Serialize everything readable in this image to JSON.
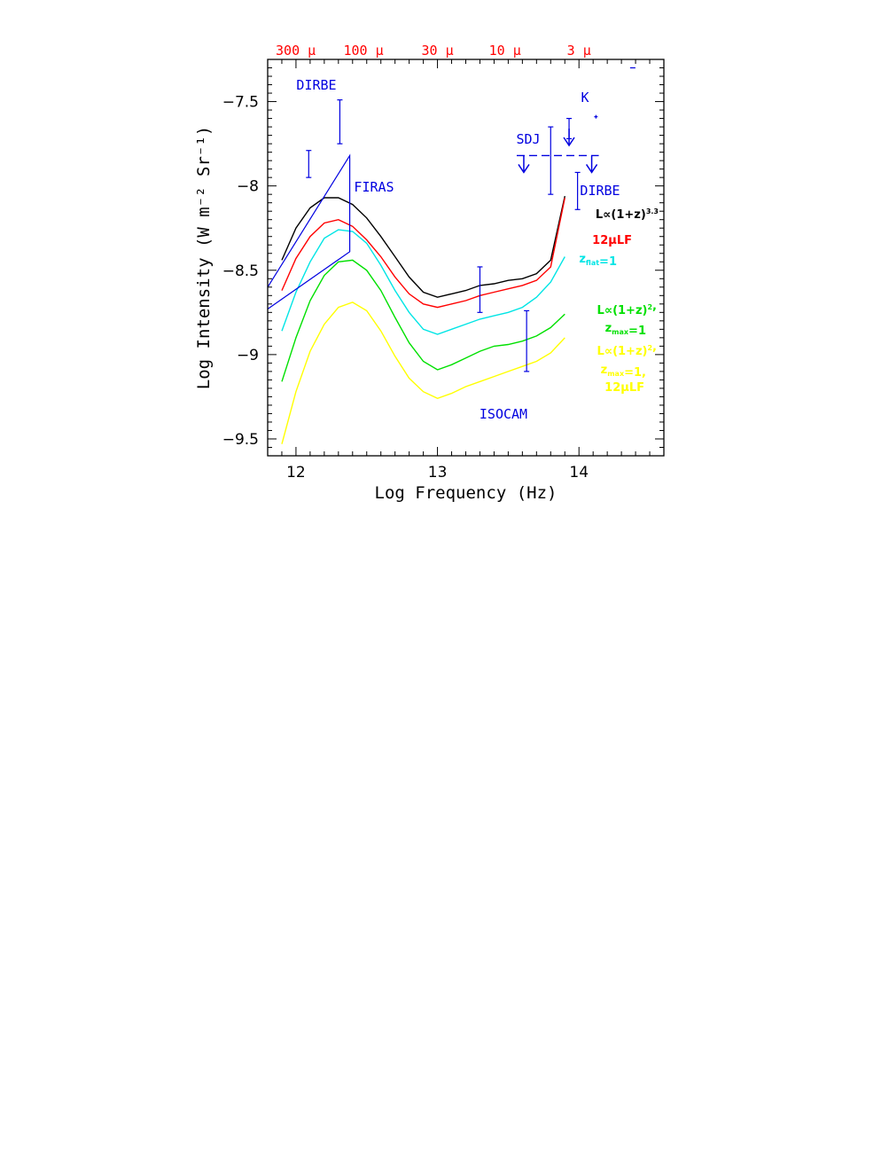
{
  "chart_data": {
    "type": "line",
    "xlabel": "Log Frequency (Hz)",
    "ylabel": "Log Intensity (W m⁻² Sr⁻¹)",
    "xlim": [
      11.8,
      14.6
    ],
    "ylim": [
      -9.6,
      -7.25
    ],
    "x_ticks": [
      {
        "value": 12,
        "label": "12"
      },
      {
        "value": 13,
        "label": "13"
      },
      {
        "value": 14,
        "label": "14"
      }
    ],
    "y_ticks": [
      {
        "value": -7.5,
        "label": "−7.5"
      },
      {
        "value": -8,
        "label": "−8"
      },
      {
        "value": -8.5,
        "label": "−8.5"
      },
      {
        "value": -9,
        "label": "−9"
      },
      {
        "value": -9.5,
        "label": "−9.5"
      }
    ],
    "top_axis_labels": [
      {
        "x": 11.998,
        "label": "300 μ"
      },
      {
        "x": 12.477,
        "label": "100 μ"
      },
      {
        "x": 13.0,
        "label": "30 μ"
      },
      {
        "x": 13.477,
        "label": "10 μ"
      },
      {
        "x": 14.0,
        "label": "3 μ"
      }
    ],
    "x": [
      11.9,
      12.0,
      12.1,
      12.2,
      12.3,
      12.4,
      12.5,
      12.6,
      12.7,
      12.8,
      12.9,
      13.0,
      13.1,
      13.2,
      13.3,
      13.4,
      13.5,
      13.6,
      13.7,
      13.8,
      13.9
    ],
    "series": [
      {
        "color": "#000000",
        "values": [
          -8.44,
          -8.25,
          -8.13,
          -8.07,
          -8.07,
          -8.11,
          -8.19,
          -8.3,
          -8.42,
          -8.54,
          -8.63,
          -8.66,
          -8.64,
          -8.62,
          -8.59,
          -8.58,
          -8.56,
          -8.55,
          -8.52,
          -8.44,
          -8.06
        ]
      },
      {
        "color": "#ff0000",
        "values": [
          -8.62,
          -8.43,
          -8.3,
          -8.22,
          -8.2,
          -8.24,
          -8.32,
          -8.42,
          -8.54,
          -8.64,
          -8.7,
          -8.72,
          -8.7,
          -8.68,
          -8.65,
          -8.63,
          -8.61,
          -8.59,
          -8.56,
          -8.48,
          -8.07
        ]
      },
      {
        "color": "#00e5e5",
        "values": [
          -8.86,
          -8.63,
          -8.45,
          -8.31,
          -8.26,
          -8.27,
          -8.34,
          -8.47,
          -8.62,
          -8.75,
          -8.85,
          -8.88,
          -8.85,
          -8.82,
          -8.79,
          -8.77,
          -8.75,
          -8.72,
          -8.66,
          -8.57,
          -8.42
        ]
      },
      {
        "color": "#00e000",
        "values": [
          -9.16,
          -8.9,
          -8.68,
          -8.53,
          -8.45,
          -8.44,
          -8.5,
          -8.62,
          -8.78,
          -8.93,
          -9.04,
          -9.09,
          -9.06,
          -9.02,
          -8.98,
          -8.95,
          -8.94,
          -8.92,
          -8.89,
          -8.84,
          -8.76
        ]
      },
      {
        "color": "#ffff00",
        "values": [
          -9.53,
          -9.22,
          -8.98,
          -8.82,
          -8.72,
          -8.69,
          -8.74,
          -8.86,
          -9.01,
          -9.14,
          -9.22,
          -9.26,
          -9.23,
          -9.19,
          -9.16,
          -9.13,
          -9.1,
          -9.07,
          -9.04,
          -8.99,
          -8.9
        ]
      }
    ],
    "legend": [
      {
        "color": "#000000",
        "parts": [
          {
            "t": "L∝(1+z)"
          },
          {
            "t": "3.3",
            "sup": true
          }
        ]
      },
      {
        "color": "#ff0000",
        "parts": [
          {
            "t": "12μLF"
          }
        ]
      },
      {
        "color": "#00e5e5",
        "parts": [
          {
            "t": "z"
          },
          {
            "t": "flat",
            "sub": true
          },
          {
            "t": "=1"
          }
        ]
      },
      {
        "color": "#00e000",
        "parts": [
          {
            "t": "L∝(1+z)"
          },
          {
            "t": "2",
            "sup": true
          },
          {
            "t": ","
          }
        ]
      },
      {
        "color": "#00e000",
        "parts": [
          {
            "t": "z"
          },
          {
            "t": "max",
            "sub": true
          },
          {
            "t": "=1"
          }
        ]
      },
      {
        "color": "#ffff00",
        "parts": [
          {
            "t": "L∝(1+z)"
          },
          {
            "t": "2",
            "sup": true
          },
          {
            "t": ","
          }
        ]
      },
      {
        "color": "#ffff00",
        "parts": [
          {
            "t": "z"
          },
          {
            "t": "max",
            "sub": true
          },
          {
            "t": "=1,"
          }
        ]
      },
      {
        "color": "#ffff00",
        "parts": [
          {
            "t": "12μLF"
          }
        ]
      }
    ],
    "observations": {
      "color": "#0000e0",
      "labels": [
        "DIRBE",
        "FIRAS",
        "SDJ",
        "K",
        "DIRBE",
        "ISOCAM"
      ],
      "error_bars": [
        {
          "x": 12.09,
          "low": -7.95,
          "high": -7.79
        },
        {
          "x": 12.31,
          "low": -7.75,
          "high": -7.49
        },
        {
          "x": 13.3,
          "low": -8.75,
          "high": -8.48
        },
        {
          "x": 13.63,
          "low": -9.1,
          "high": -8.74
        },
        {
          "x": 13.8,
          "low": -8.05,
          "high": -7.65
        },
        {
          "x": 13.93,
          "low": -7.72,
          "high": -7.6
        },
        {
          "x": 13.99,
          "low": -8.14,
          "high": -7.92
        }
      ],
      "firas_region": [
        [
          11.8,
          -8.6
        ],
        [
          12.38,
          -7.82
        ],
        [
          12.38,
          -8.39
        ],
        [
          11.8,
          -8.73
        ]
      ],
      "sdj_limit": {
        "x": [
          13.56,
          14.14
        ],
        "y": -7.82
      }
    }
  }
}
